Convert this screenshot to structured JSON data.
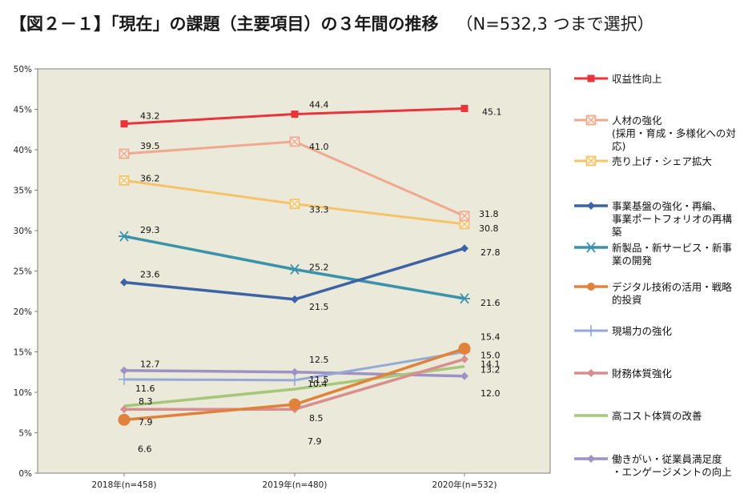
{
  "header": {
    "title": "【図２－１】「現在」の課題（主要項目）の３年間の推移",
    "note": "（N=532,3 つまで選択）"
  },
  "colors": {
    "plot_bg": "#ebe9da",
    "axis": "#808080",
    "red": "#e8343a",
    "salmon": "#f0a990",
    "yellow": "#f5c46a",
    "darkblue": "#3c63a4",
    "teal": "#3a93ab",
    "orange": "#e0823b",
    "lightblue": "#93aad8",
    "pink": "#d88e8e",
    "green": "#a6c77a",
    "purple": "#9e92c4"
  },
  "chart_data": {
    "type": "line",
    "title": "【図２－１】「現在」の課題（主要項目）の３年間の推移",
    "subtitle": "（N=532,3 つまで選択）",
    "categories": [
      "2018年(n=458)",
      "2019年(n=480)",
      "2020年(n=532)"
    ],
    "ylim": [
      0,
      50
    ],
    "yticks": [
      "0%",
      "5%",
      "10%",
      "15%",
      "20%",
      "25%",
      "30%",
      "35%",
      "40%",
      "45%",
      "50%"
    ],
    "grid": false,
    "legend_position": "right",
    "series": [
      {
        "name": "収益性向上",
        "legend": [
          "収益性向上"
        ],
        "values": [
          43.2,
          44.4,
          45.1
        ],
        "color": "red",
        "marker": "square",
        "labels": [
          "43.2",
          "44.4",
          "45.1"
        ]
      },
      {
        "name": "人材の強化（採用・育成・多様化への対応）",
        "legend": [
          "人材の強化",
          "(採用・育成・多様化への対",
          "応)"
        ],
        "values": [
          39.5,
          41.0,
          31.8
        ],
        "color": "salmon",
        "marker": "xbox",
        "labels": [
          "39.5",
          "41.0",
          "31.8"
        ]
      },
      {
        "name": "売り上げ・シェア拡大",
        "legend": [
          "売り上げ・シェア拡大"
        ],
        "values": [
          36.2,
          33.3,
          30.8
        ],
        "color": "yellow",
        "marker": "xbox",
        "labels": [
          "36.2",
          "33.3",
          "30.8"
        ]
      },
      {
        "name": "事業基盤の強化・再編、事業ポートフォリオの再構築",
        "legend": [
          "事業基盤の強化・再編、",
          "事業ポートフォリオの再構",
          "築"
        ],
        "values": [
          23.6,
          21.5,
          27.8
        ],
        "color": "darkblue",
        "marker": "diamond",
        "labels": [
          "23.6",
          "21.5",
          "27.8"
        ]
      },
      {
        "name": "新製品・新サービス・新事業の開発",
        "legend": [
          "新製品・新サービス・新事",
          "業の開発"
        ],
        "values": [
          29.3,
          25.2,
          21.6
        ],
        "color": "teal",
        "marker": "asterisk",
        "labels": [
          "29.3",
          "25.2",
          "21.6"
        ]
      },
      {
        "name": "デジタル技術の活用・戦略的投資",
        "legend": [
          "デジタル技術の活用・戦略",
          "的投資"
        ],
        "values": [
          6.6,
          8.5,
          15.4
        ],
        "color": "orange",
        "marker": "circle",
        "labels": [
          "6.6",
          "8.5",
          "15.4"
        ]
      },
      {
        "name": "現場力の強化",
        "legend": [
          "現場力の強化"
        ],
        "values": [
          11.6,
          11.5,
          15.0
        ],
        "color": "lightblue",
        "marker": "plus",
        "labels": [
          "11.6",
          "11.5",
          "15.0"
        ]
      },
      {
        "name": "財務体質強化",
        "legend": [
          "財務体質強化"
        ],
        "values": [
          7.9,
          7.9,
          14.1
        ],
        "color": "pink",
        "marker": "diamond",
        "labels": [
          "7.9",
          "7.9",
          "14.1"
        ]
      },
      {
        "name": "高コスト体質の改善",
        "legend": [
          "高コスト体質の改善"
        ],
        "values": [
          8.3,
          10.4,
          13.2
        ],
        "color": "green",
        "marker": "none",
        "labels": [
          "8.3",
          "10.4",
          "13.2"
        ]
      },
      {
        "name": "働きがい・従業員満足度・エンゲージメントの向上",
        "legend": [
          "働きがい・従業員満足度",
          "・エンゲージメントの向上"
        ],
        "values": [
          12.7,
          12.5,
          12.0
        ],
        "color": "purple",
        "marker": "diamond",
        "labels": [
          "12.7",
          "12.5",
          "12.0"
        ]
      }
    ]
  }
}
